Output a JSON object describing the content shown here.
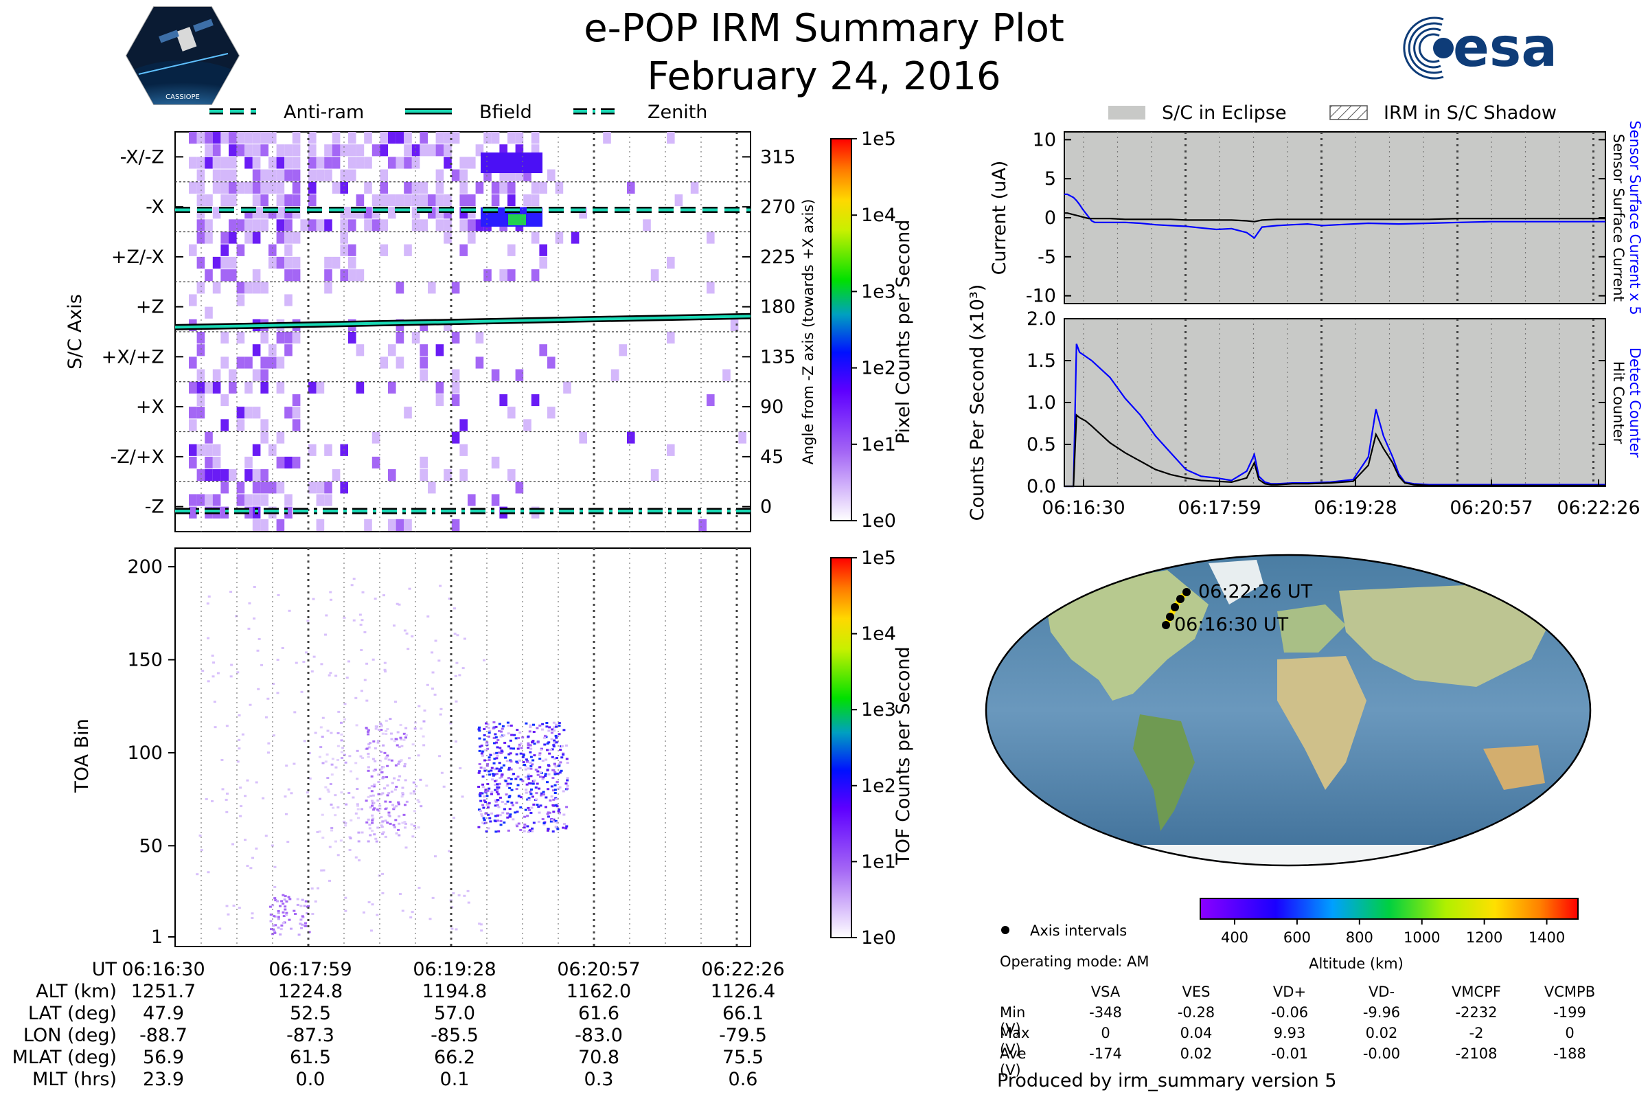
{
  "title": {
    "line1": "e-POP IRM Summary Plot",
    "line2": "February 24, 2016"
  },
  "logos": {
    "left_badge": "CASSIOPE",
    "right_logo": "esa"
  },
  "colors": {
    "bfield": "#1ad9b5",
    "sensor_current": "#0000ff",
    "black": "#000000",
    "eclipse": "#c8c9c7",
    "pixel_purple": "#a466f5"
  },
  "panel_pixel": {
    "legend": [
      {
        "label": "Anti-ram",
        "style": "dashed"
      },
      {
        "label": "Bfield",
        "style": "solid"
      },
      {
        "label": "Zenith",
        "style": "dashdot"
      }
    ],
    "ylabel": "S/C Axis",
    "y2label": "Angle from -Z axis (towards +X axis)",
    "axis_labels": [
      "-X/-Z",
      "-X",
      "+Z/-X",
      "+Z",
      "+X/+Z",
      "+X",
      "-Z/+X",
      "-Z"
    ],
    "angle_ticks": [
      315,
      270,
      225,
      180,
      135,
      90,
      45,
      0
    ],
    "colorbar_label": "Pixel Counts per Second",
    "colorbar_ticks": [
      "1e5",
      "1e4",
      "1e3",
      "1e2",
      "1e1",
      "1e0"
    ]
  },
  "panel_tof": {
    "ylabel": "TOA Bin",
    "yticks": [
      200,
      150,
      100,
      50,
      1
    ],
    "colorbar_label": "TOF Counts per Second",
    "colorbar_ticks": [
      "1e5",
      "1e4",
      "1e3",
      "1e2",
      "1e1",
      "1e0"
    ]
  },
  "ephemeris": {
    "rows": [
      {
        "label": "UT",
        "values": [
          "06:16:30",
          "06:17:59",
          "06:19:28",
          "06:20:57",
          "06:22:26"
        ]
      },
      {
        "label": "ALT (km)",
        "values": [
          "1251.7",
          "1224.8",
          "1194.8",
          "1162.0",
          "1126.4"
        ]
      },
      {
        "label": "LAT (deg)",
        "values": [
          "47.9",
          "52.5",
          "57.0",
          "61.6",
          "66.1"
        ]
      },
      {
        "label": "LON (deg)",
        "values": [
          "-88.7",
          "-87.3",
          "-85.5",
          "-83.0",
          "-79.5"
        ]
      },
      {
        "label": "MLAT (deg)",
        "values": [
          "56.9",
          "61.5",
          "66.2",
          "70.8",
          "75.5"
        ]
      },
      {
        "label": "MLT (hrs)",
        "values": [
          "23.9",
          "0.0",
          "0.1",
          "0.3",
          "0.6"
        ]
      }
    ]
  },
  "right_legend": [
    {
      "label": "S/C in Eclipse",
      "style": "solid-gray"
    },
    {
      "label": "IRM in S/C Shadow",
      "style": "hatched"
    }
  ],
  "chart_data": [
    {
      "type": "line",
      "name": "current",
      "ylabel": "Current (uA)",
      "y2label_blue": "Sensor Surface Current x 5",
      "y2label_black": "Sensor Surface Current",
      "ylim": [
        -11,
        11
      ],
      "yticks": [
        10,
        5,
        0,
        -5,
        -10
      ],
      "x": [
        0,
        2,
        4,
        6,
        8,
        10,
        12,
        14,
        16,
        18,
        20,
        25,
        30,
        40,
        50,
        60,
        70,
        80,
        90,
        100,
        110,
        120,
        125,
        130,
        140,
        150,
        160,
        170,
        180,
        200,
        220,
        240,
        260,
        280,
        300,
        320,
        340,
        356
      ],
      "series": [
        {
          "name": "Sensor Surface Current x 5",
          "color": "blue",
          "values": [
            3.0,
            3.0,
            2.8,
            2.6,
            2.2,
            1.7,
            1.1,
            0.6,
            0.1,
            -0.4,
            -0.6,
            -0.6,
            -0.6,
            -0.6,
            -0.7,
            -0.9,
            -1.0,
            -1.1,
            -1.3,
            -1.5,
            -1.4,
            -1.9,
            -2.6,
            -1.2,
            -1.0,
            -0.9,
            -0.8,
            -1.0,
            -0.9,
            -0.7,
            -0.8,
            -0.7,
            -0.6,
            -0.5,
            -0.5,
            -0.5,
            -0.5,
            -0.5
          ]
        },
        {
          "name": "Sensor Surface Current",
          "color": "black",
          "values": [
            0.6,
            0.6,
            0.5,
            0.4,
            0.3,
            0.2,
            0.1,
            0.0,
            -0.1,
            -0.1,
            -0.1,
            -0.1,
            -0.1,
            -0.2,
            -0.2,
            -0.2,
            -0.2,
            -0.3,
            -0.3,
            -0.3,
            -0.3,
            -0.4,
            -0.5,
            -0.3,
            -0.2,
            -0.2,
            -0.2,
            -0.2,
            -0.2,
            -0.2,
            -0.2,
            -0.2,
            -0.1,
            -0.1,
            -0.1,
            -0.1,
            -0.1,
            -0.1
          ]
        }
      ]
    },
    {
      "type": "line",
      "name": "counts",
      "ylabel": "Counts Per Second (x10³)",
      "y2label_blue": "Detect Counter",
      "y2label_black": "Hit Counter",
      "ylim": [
        0,
        2.0
      ],
      "yticks": [
        2.0,
        1.5,
        1.0,
        0.5,
        0.0
      ],
      "xticks": [
        "06:16:30",
        "06:17:59",
        "06:19:28",
        "06:20:57",
        "06:22:26"
      ],
      "x": [
        0,
        6,
        8,
        10,
        14,
        18,
        24,
        30,
        40,
        50,
        60,
        70,
        80,
        90,
        100,
        110,
        120,
        125,
        128,
        132,
        136,
        140,
        150,
        160,
        175,
        190,
        200,
        205,
        210,
        216,
        220,
        224,
        230,
        240,
        260,
        280,
        300,
        320,
        340,
        356
      ],
      "series": [
        {
          "name": "Detect Counter",
          "color": "blue",
          "values": [
            0.0,
            0.0,
            1.7,
            1.6,
            1.55,
            1.5,
            1.4,
            1.3,
            1.05,
            0.85,
            0.6,
            0.4,
            0.2,
            0.12,
            0.1,
            0.07,
            0.18,
            0.38,
            0.12,
            0.05,
            0.03,
            0.03,
            0.04,
            0.04,
            0.05,
            0.08,
            0.35,
            0.92,
            0.6,
            0.35,
            0.15,
            0.05,
            0.03,
            0.02,
            0.02,
            0.02,
            0.02,
            0.02,
            0.02,
            0.02
          ]
        },
        {
          "name": "Hit Counter",
          "color": "black",
          "values": [
            0.0,
            0.0,
            0.85,
            0.82,
            0.78,
            0.72,
            0.62,
            0.52,
            0.4,
            0.3,
            0.2,
            0.14,
            0.1,
            0.07,
            0.06,
            0.05,
            0.1,
            0.28,
            0.08,
            0.03,
            0.02,
            0.02,
            0.03,
            0.03,
            0.04,
            0.06,
            0.25,
            0.62,
            0.45,
            0.28,
            0.12,
            0.04,
            0.02,
            0.01,
            0.01,
            0.01,
            0.01,
            0.01,
            0.01,
            0.01
          ]
        }
      ]
    }
  ],
  "map": {
    "start_label": "06:16:30 UT",
    "end_label": "06:22:26 UT",
    "colorbar_label": "Altitude (km)",
    "colorbar_ticks": [
      400,
      600,
      800,
      1000,
      1200,
      1400
    ],
    "legend_label": "Axis intervals",
    "operating_mode": "Operating mode: AM"
  },
  "voltages": {
    "columns": [
      "VSA",
      "VES",
      "VD+",
      "VD-",
      "VMCPF",
      "VCMPB"
    ],
    "rows": [
      {
        "label": "Min (V)",
        "values": [
          "-348",
          "-0.28",
          "-0.06",
          "-9.96",
          "-2232",
          "-199"
        ]
      },
      {
        "label": "Max (V)",
        "values": [
          "0",
          "0.04",
          "9.93",
          "0.02",
          "-2",
          "0"
        ]
      },
      {
        "label": "Ave (V)",
        "values": [
          "-174",
          "0.02",
          "-0.01",
          "-0.00",
          "-2108",
          "-188"
        ]
      }
    ]
  },
  "footer": "Produced by irm_summary version 5"
}
